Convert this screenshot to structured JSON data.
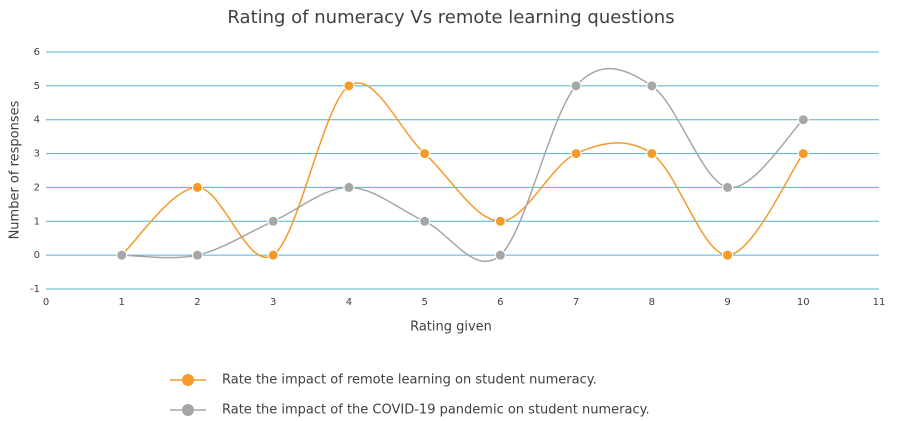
{
  "chart_data": {
    "type": "line",
    "smooth": true,
    "title": "Rating of numeracy Vs remote learning questions",
    "x_label": "Rating given",
    "y_label": "Number of responses",
    "x": [
      1,
      2,
      3,
      4,
      5,
      6,
      7,
      8,
      9,
      10
    ],
    "series": [
      {
        "name": "Rate the impact of remote learning on student numeracy.",
        "color": "#f39a2b",
        "values": [
          0,
          2,
          0,
          5,
          3,
          1,
          3,
          3,
          0,
          3
        ]
      },
      {
        "name": "Rate the impact of the COVID-19 pandemic on student numeracy.",
        "color": "#a6a6a6",
        "values": [
          0,
          0,
          1,
          2,
          1,
          0,
          5,
          5,
          2,
          4
        ]
      }
    ],
    "xlim": [
      0,
      11
    ],
    "xticks": [
      0,
      1,
      2,
      3,
      4,
      5,
      6,
      7,
      8,
      9,
      10,
      11
    ],
    "ylim": [
      -1,
      6
    ],
    "yticks": [
      -1,
      0,
      1,
      2,
      3,
      4,
      5,
      6
    ],
    "grid": true,
    "grid_color": "#4fb3d1",
    "legend": "bottom"
  }
}
